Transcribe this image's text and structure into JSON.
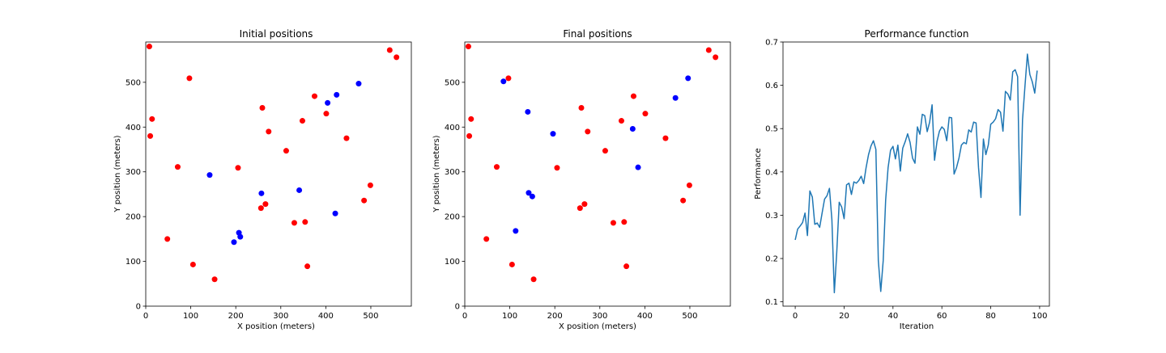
{
  "colors": {
    "red_points": "#ff0000",
    "blue_points": "#0000ff",
    "line": "#1f77b4",
    "axes": "#000000"
  },
  "chart_data": [
    {
      "type": "scatter",
      "title": "Initial positions",
      "xlabel": "X position (meters)",
      "ylabel": "Y position (meters)",
      "xlim": [
        0,
        590
      ],
      "ylim": [
        0,
        590
      ],
      "xticks": [
        0,
        100,
        200,
        300,
        400,
        500
      ],
      "yticks": [
        0,
        100,
        200,
        300,
        400,
        500
      ],
      "grid": false,
      "series": [
        {
          "color": "red",
          "points": [
            [
              8,
              580
            ],
            [
              14,
              418
            ],
            [
              10,
              380
            ],
            [
              97,
              509
            ],
            [
              71,
              311
            ],
            [
              48,
              150
            ],
            [
              105,
              93
            ],
            [
              153,
              60
            ],
            [
              205,
              309
            ],
            [
              259,
              443
            ],
            [
              273,
              390
            ],
            [
              312,
              347
            ],
            [
              348,
              414
            ],
            [
              375,
              469
            ],
            [
              401,
              430
            ],
            [
              446,
              375
            ],
            [
              499,
              270
            ],
            [
              485,
              236
            ],
            [
              542,
              572
            ],
            [
              557,
              556
            ],
            [
              266,
              228
            ],
            [
              256,
              219
            ],
            [
              330,
              186
            ],
            [
              354,
              188
            ],
            [
              359,
              89
            ]
          ]
        },
        {
          "color": "blue",
          "points": [
            [
              142,
              293
            ],
            [
              473,
              497
            ],
            [
              424,
              472
            ],
            [
              404,
              454
            ],
            [
              257,
              252
            ],
            [
              341,
              259
            ],
            [
              421,
              207
            ],
            [
              207,
              164
            ],
            [
              210,
              155
            ],
            [
              196,
              143
            ]
          ]
        }
      ]
    },
    {
      "type": "scatter",
      "title": "Final positions",
      "xlabel": "X position (meters)",
      "ylabel": "Y position (meters)",
      "xlim": [
        0,
        590
      ],
      "ylim": [
        0,
        590
      ],
      "xticks": [
        0,
        100,
        200,
        300,
        400,
        500
      ],
      "yticks": [
        0,
        100,
        200,
        300,
        400,
        500
      ],
      "grid": false,
      "series": [
        {
          "color": "red",
          "points": [
            [
              8,
              580
            ],
            [
              14,
              418
            ],
            [
              10,
              380
            ],
            [
              97,
              509
            ],
            [
              71,
              311
            ],
            [
              48,
              150
            ],
            [
              105,
              93
            ],
            [
              153,
              60
            ],
            [
              205,
              309
            ],
            [
              259,
              443
            ],
            [
              273,
              390
            ],
            [
              312,
              347
            ],
            [
              348,
              414
            ],
            [
              375,
              469
            ],
            [
              401,
              430
            ],
            [
              446,
              375
            ],
            [
              499,
              270
            ],
            [
              485,
              236
            ],
            [
              542,
              572
            ],
            [
              557,
              556
            ],
            [
              266,
              228
            ],
            [
              256,
              219
            ],
            [
              330,
              186
            ],
            [
              354,
              188
            ],
            [
              359,
              89
            ]
          ]
        },
        {
          "color": "blue",
          "points": [
            [
              86,
              502
            ],
            [
              140,
              434
            ],
            [
              496,
              509
            ],
            [
              468,
              465
            ],
            [
              373,
              396
            ],
            [
              196,
              385
            ],
            [
              385,
              310
            ],
            [
              142,
              253
            ],
            [
              150,
              245
            ],
            [
              113,
              168
            ]
          ]
        }
      ]
    },
    {
      "type": "line",
      "title": "Performance function",
      "xlabel": "Iteration",
      "ylabel": "Performance",
      "xlim": [
        -5,
        104
      ],
      "ylim": [
        0.09,
        0.7
      ],
      "xticks": [
        0,
        20,
        40,
        60,
        80,
        100
      ],
      "yticks": [
        0.1,
        0.2,
        0.3,
        0.4,
        0.5,
        0.6,
        0.7
      ],
      "grid": false,
      "series": [
        {
          "x": [
            0,
            1,
            2,
            3,
            4,
            5,
            6,
            7,
            8,
            9,
            10,
            11,
            12,
            13,
            14,
            15,
            16,
            17,
            18,
            19,
            20,
            21,
            22,
            23,
            24,
            25,
            26,
            27,
            28,
            29,
            30,
            31,
            32,
            33,
            34,
            35,
            36,
            37,
            38,
            39,
            40,
            41,
            42,
            43,
            44,
            45,
            46,
            47,
            48,
            49,
            50,
            51,
            52,
            53,
            54,
            55,
            56,
            57,
            58,
            59,
            60,
            61,
            62,
            63,
            64,
            65,
            66,
            67,
            68,
            69,
            70,
            71,
            72,
            73,
            74,
            75,
            76,
            77,
            78,
            79,
            80,
            81,
            82,
            83,
            84,
            85,
            86,
            87,
            88,
            89,
            90,
            91,
            92,
            93,
            94,
            95,
            96,
            97,
            98,
            99
          ],
          "values": [
            0.243,
            0.268,
            0.275,
            0.283,
            0.305,
            0.253,
            0.356,
            0.342,
            0.279,
            0.282,
            0.272,
            0.305,
            0.337,
            0.345,
            0.362,
            0.29,
            0.121,
            0.215,
            0.33,
            0.319,
            0.292,
            0.37,
            0.374,
            0.348,
            0.377,
            0.374,
            0.38,
            0.39,
            0.373,
            0.41,
            0.44,
            0.46,
            0.472,
            0.452,
            0.195,
            0.124,
            0.195,
            0.335,
            0.41,
            0.45,
            0.459,
            0.43,
            0.462,
            0.402,
            0.455,
            0.47,
            0.488,
            0.468,
            0.432,
            0.42,
            0.504,
            0.487,
            0.533,
            0.53,
            0.493,
            0.515,
            0.555,
            0.427,
            0.47,
            0.494,
            0.504,
            0.498,
            0.472,
            0.526,
            0.525,
            0.395,
            0.41,
            0.432,
            0.462,
            0.468,
            0.465,
            0.497,
            0.492,
            0.515,
            0.513,
            0.41,
            0.341,
            0.476,
            0.44,
            0.462,
            0.51,
            0.515,
            0.523,
            0.544,
            0.538,
            0.494,
            0.586,
            0.58,
            0.566,
            0.631,
            0.636,
            0.62,
            0.3,
            0.52,
            0.598,
            0.672,
            0.625,
            0.608,
            0.582,
            0.634
          ]
        }
      ]
    }
  ]
}
